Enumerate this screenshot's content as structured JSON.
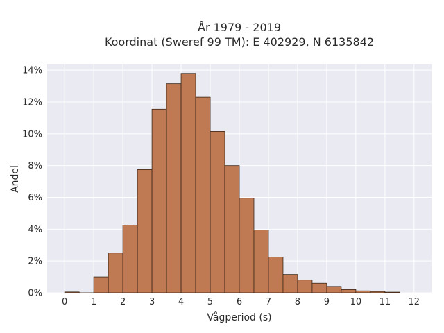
{
  "chart_data": {
    "type": "bar",
    "title_line1": "År 1979 - 2019",
    "title_line2": "Koordinat (Sweref 99 TM): E 402929, N 6135842",
    "xlabel": "Vågperiod (s)",
    "ylabel": "Andel",
    "xlim": [
      -0.6,
      12.6
    ],
    "ylim": [
      0,
      14.4
    ],
    "bin_width": 0.5,
    "x_ticks": [
      0,
      1,
      2,
      3,
      4,
      5,
      6,
      7,
      8,
      9,
      10,
      11,
      12
    ],
    "x_tick_labels": [
      "0",
      "1",
      "2",
      "3",
      "4",
      "5",
      "6",
      "7",
      "8",
      "9",
      "10",
      "11",
      "12"
    ],
    "y_ticks": [
      0,
      2,
      4,
      6,
      8,
      10,
      12,
      14
    ],
    "y_tick_labels": [
      "0%",
      "2%",
      "4%",
      "6%",
      "8%",
      "10%",
      "12%",
      "14%"
    ],
    "grid": true,
    "colors": {
      "bar_fill": "#c07a53",
      "bar_edge": "#3b2618",
      "plot_bg": "#e9eaf2",
      "grid": "#ffffff"
    },
    "bins": [
      {
        "x0": 0.0,
        "value": 0.05
      },
      {
        "x0": 0.5,
        "value": 0.0
      },
      {
        "x0": 1.0,
        "value": 1.0
      },
      {
        "x0": 1.5,
        "value": 2.5
      },
      {
        "x0": 2.0,
        "value": 4.25
      },
      {
        "x0": 2.5,
        "value": 7.75
      },
      {
        "x0": 3.0,
        "value": 11.55
      },
      {
        "x0": 3.5,
        "value": 13.15
      },
      {
        "x0": 4.0,
        "value": 13.8
      },
      {
        "x0": 4.5,
        "value": 12.3
      },
      {
        "x0": 5.0,
        "value": 10.15
      },
      {
        "x0": 5.5,
        "value": 8.0
      },
      {
        "x0": 6.0,
        "value": 5.95
      },
      {
        "x0": 6.5,
        "value": 3.95
      },
      {
        "x0": 7.0,
        "value": 2.25
      },
      {
        "x0": 7.5,
        "value": 1.15
      },
      {
        "x0": 8.0,
        "value": 0.8
      },
      {
        "x0": 8.5,
        "value": 0.6
      },
      {
        "x0": 9.0,
        "value": 0.4
      },
      {
        "x0": 9.5,
        "value": 0.2
      },
      {
        "x0": 10.0,
        "value": 0.12
      },
      {
        "x0": 10.5,
        "value": 0.08
      },
      {
        "x0": 11.0,
        "value": 0.04
      }
    ]
  }
}
